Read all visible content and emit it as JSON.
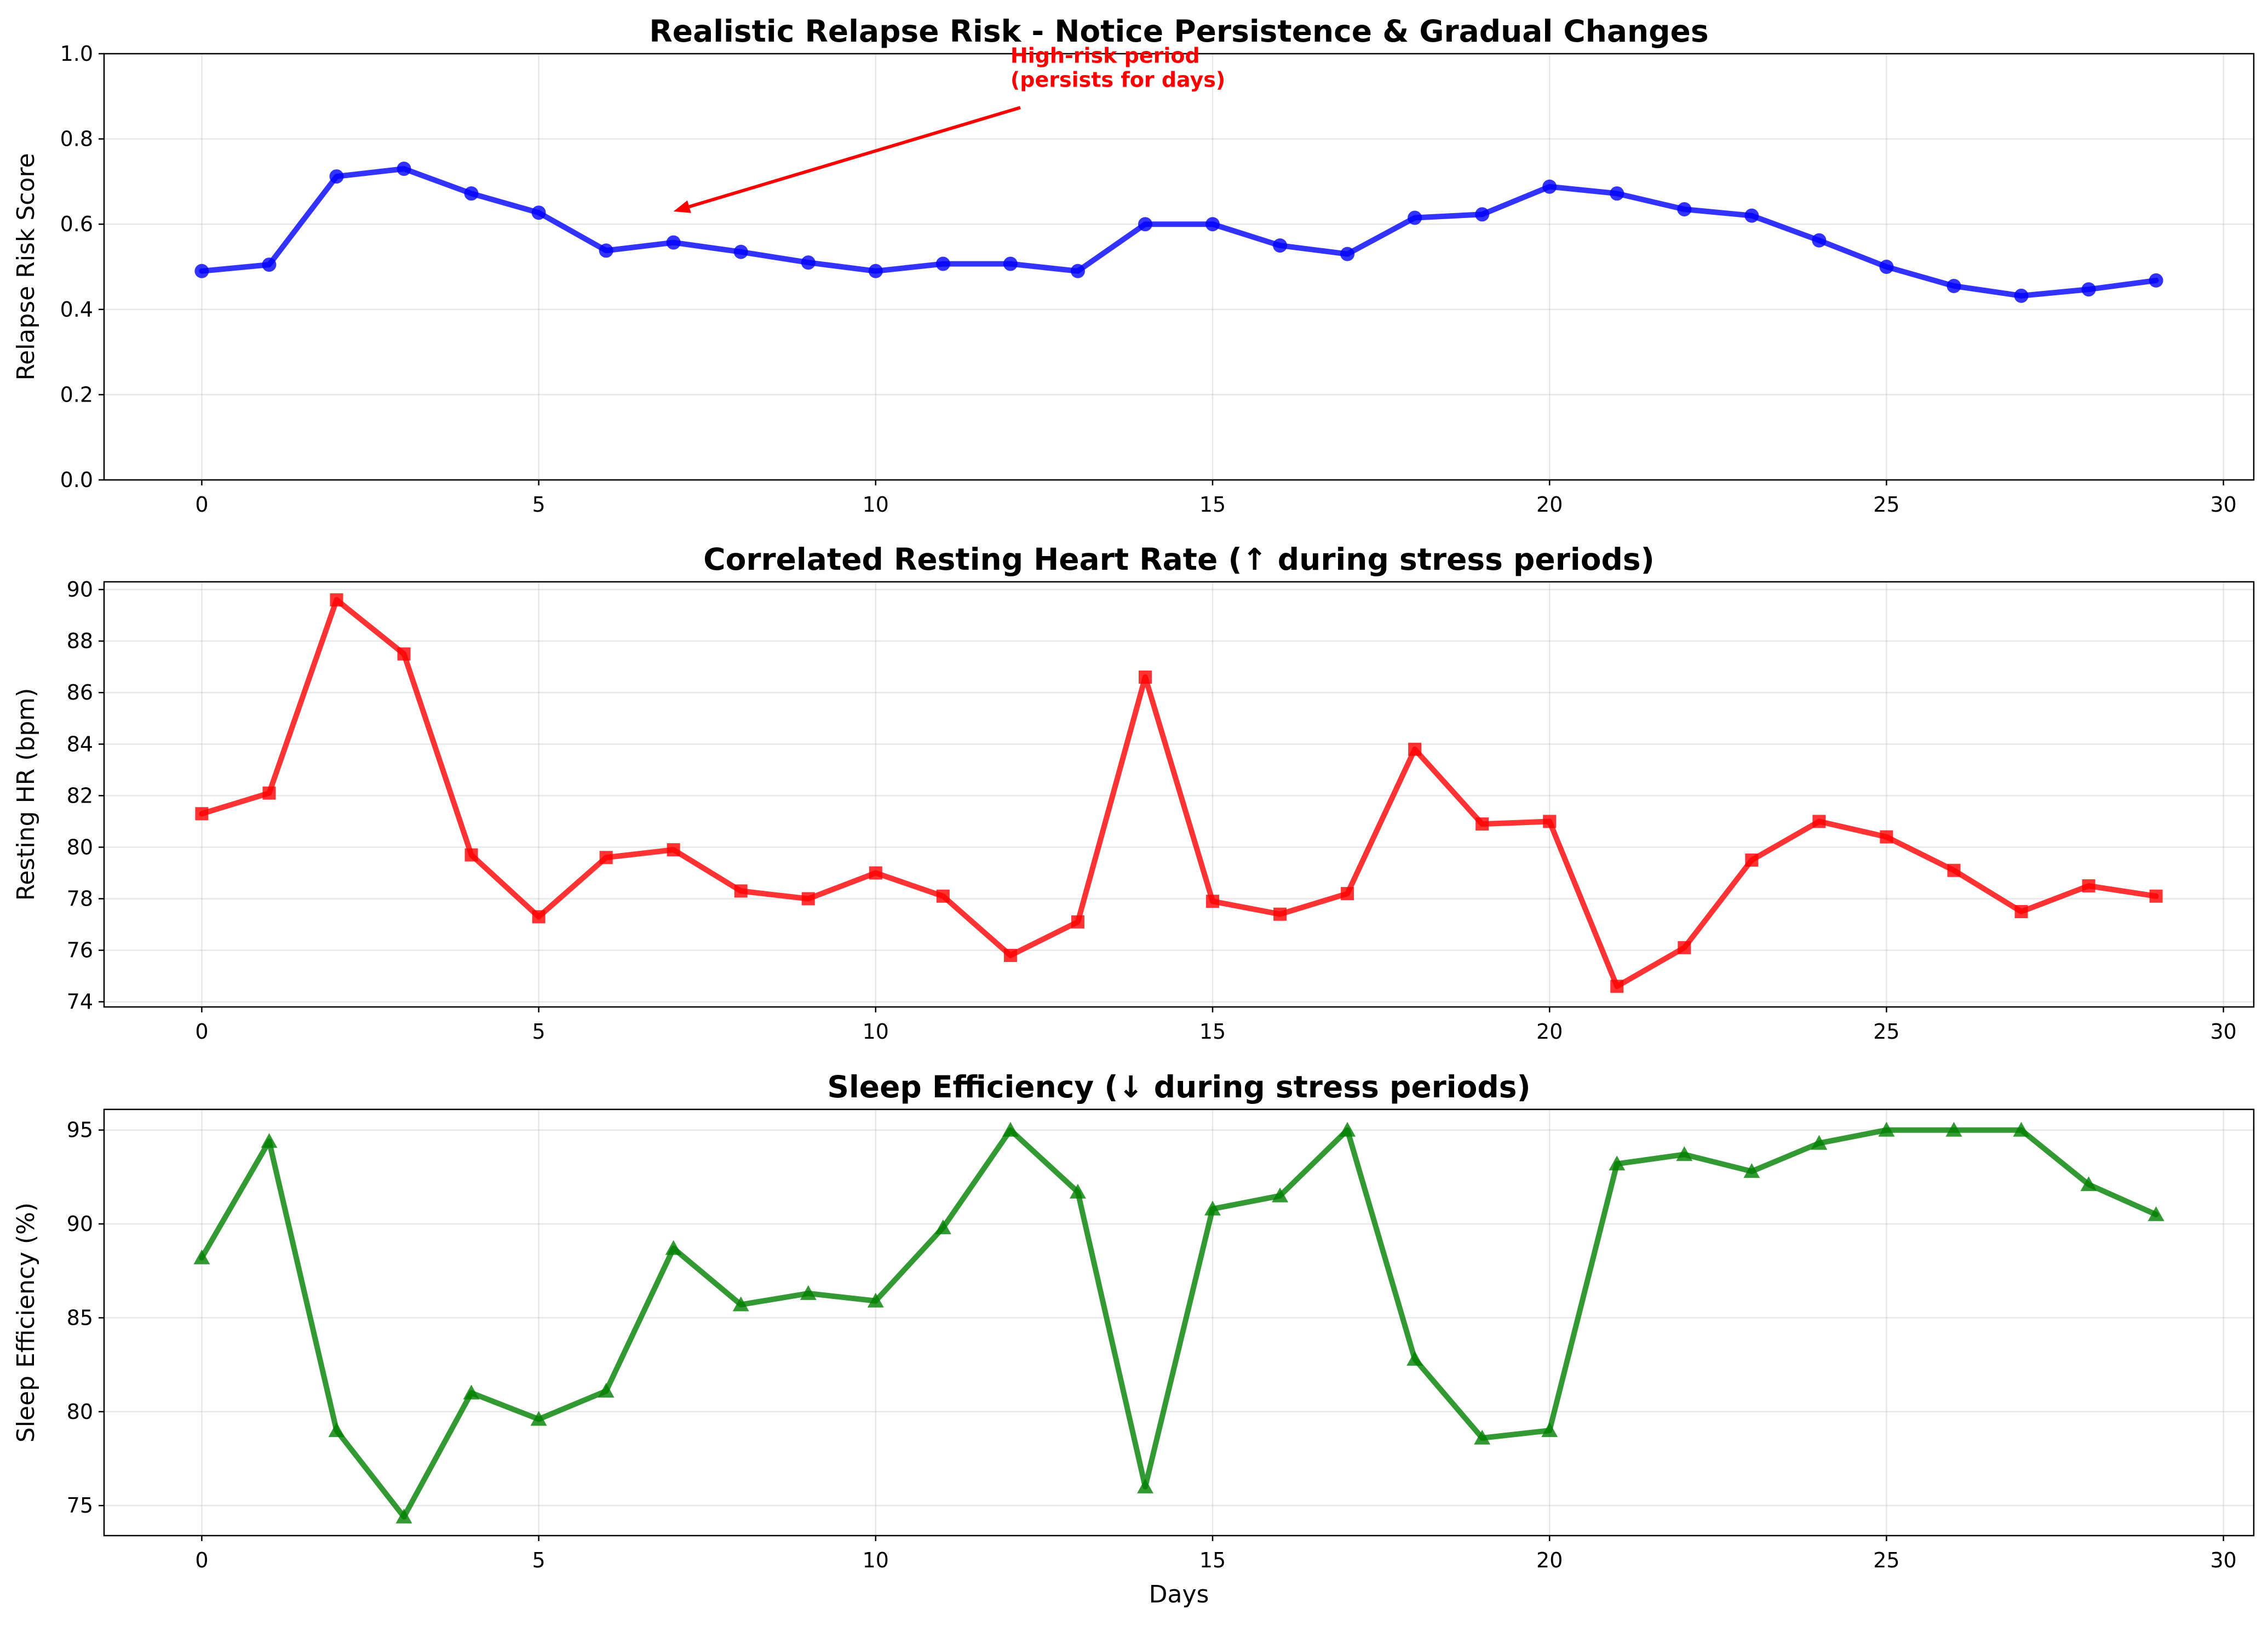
{
  "chart_data": [
    {
      "type": "line",
      "title": "Realistic Relapse Risk - Notice Persistence & Gradual Changes",
      "xlabel": "",
      "ylabel": "Relapse Risk Score",
      "xlim": [
        -1.45,
        30.45
      ],
      "ylim": [
        0.0,
        1.0
      ],
      "xticks": [
        0,
        5,
        10,
        15,
        20,
        25,
        30
      ],
      "yticks": [
        "0.0",
        "0.2",
        "0.4",
        "0.6",
        "0.8",
        "1.0"
      ],
      "grid": true,
      "color": "#0000ff",
      "marker": "circle",
      "series": [
        {
          "x": [
            0,
            1,
            2,
            3,
            4,
            5,
            6,
            7,
            8,
            9,
            10,
            11,
            12,
            13,
            14,
            15,
            16,
            17,
            18,
            19,
            20,
            21,
            22,
            23,
            24,
            25,
            26,
            27,
            28,
            29
          ],
          "values": [
            0.49,
            0.505,
            0.712,
            0.73,
            0.672,
            0.627,
            0.538,
            0.557,
            0.535,
            0.51,
            0.49,
            0.507,
            0.507,
            0.49,
            0.6,
            0.6,
            0.55,
            0.53,
            0.615,
            0.623,
            0.688,
            0.672,
            0.635,
            0.62,
            0.562,
            0.5,
            0.455,
            0.432,
            0.447,
            0.468
          ]
        }
      ],
      "annotation": {
        "text_line1": "High-risk period",
        "text_line2": "(persists for days)",
        "color": "#ff0000",
        "text_at": [
          12,
          0.97
        ],
        "arrow_to": [
          7,
          0.63
        ]
      }
    },
    {
      "type": "line",
      "title": "Correlated Resting Heart Rate (↑ during stress periods)",
      "xlabel": "",
      "ylabel": "Resting HR (bpm)",
      "xlim": [
        -1.45,
        30.45
      ],
      "ylim": [
        73.8,
        90.3
      ],
      "xticks": [
        0,
        5,
        10,
        15,
        20,
        25,
        30
      ],
      "yticks": [
        "74",
        "76",
        "78",
        "80",
        "82",
        "84",
        "86",
        "88",
        "90"
      ],
      "grid": true,
      "color": "#ff0000",
      "marker": "square",
      "series": [
        {
          "x": [
            0,
            1,
            2,
            3,
            4,
            5,
            6,
            7,
            8,
            9,
            10,
            11,
            12,
            13,
            14,
            15,
            16,
            17,
            18,
            19,
            20,
            21,
            22,
            23,
            24,
            25,
            26,
            27,
            28,
            29
          ],
          "values": [
            81.3,
            82.1,
            89.6,
            87.5,
            79.7,
            77.3,
            79.6,
            79.9,
            78.3,
            78.0,
            79.0,
            78.1,
            75.8,
            77.1,
            86.6,
            77.9,
            77.4,
            78.2,
            83.8,
            80.9,
            81.0,
            74.6,
            76.1,
            79.5,
            81.0,
            80.4,
            79.1,
            77.5,
            78.5,
            78.1
          ]
        }
      ]
    },
    {
      "type": "line",
      "title": "Sleep Efficiency (↓ during stress periods)",
      "xlabel": "Days",
      "ylabel": "Sleep Efficiency (%)",
      "xlim": [
        -1.45,
        30.45
      ],
      "ylim": [
        73.4,
        96.1
      ],
      "xticks": [
        0,
        5,
        10,
        15,
        20,
        25,
        30
      ],
      "yticks": [
        "75",
        "80",
        "85",
        "90",
        "95"
      ],
      "grid": true,
      "color": "#008000",
      "marker": "triangle",
      "series": [
        {
          "x": [
            0,
            1,
            2,
            3,
            4,
            5,
            6,
            7,
            8,
            9,
            10,
            11,
            12,
            13,
            14,
            15,
            16,
            17,
            18,
            19,
            20,
            21,
            22,
            23,
            24,
            25,
            26,
            27,
            28,
            29
          ],
          "values": [
            88.2,
            94.4,
            79.0,
            74.4,
            81.0,
            79.6,
            81.1,
            88.7,
            85.7,
            86.3,
            85.9,
            89.8,
            95.0,
            91.7,
            76.0,
            90.8,
            91.5,
            95.0,
            82.8,
            78.6,
            79.0,
            93.2,
            93.7,
            92.8,
            94.3,
            95.0,
            95.0,
            95.0,
            92.1,
            90.5
          ]
        }
      ]
    }
  ]
}
